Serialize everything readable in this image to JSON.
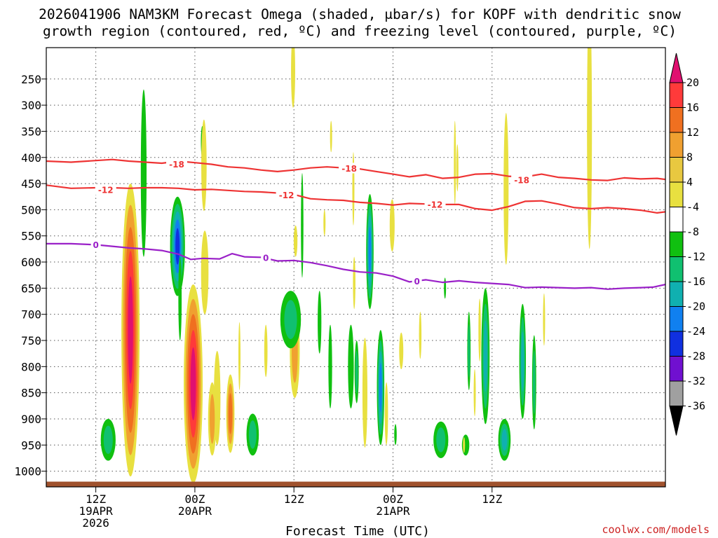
{
  "chart_data": {
    "type": "heatmap",
    "title_lines": [
      "2026041906 NAM3KM Forecast Omega (shaded, μbar/s) for KOPF with dendritic snow",
      "growth region (contoured, red, ºC) and freezing level (contoured, purple, ºC)"
    ],
    "xlabel": "Forecast Time (UTC)",
    "ylabel": "",
    "credit": "coolwx.com/models",
    "x_axis": {
      "unit": "forecast hour",
      "range": [
        -6,
        69
      ],
      "ticks": [
        {
          "hour": 0,
          "lines": [
            "12Z",
            "19APR",
            "2026"
          ]
        },
        {
          "hour": 12,
          "lines": [
            "00Z",
            "20APR"
          ]
        },
        {
          "hour": 24,
          "lines": [
            "12Z"
          ]
        },
        {
          "hour": 36,
          "lines": [
            "00Z",
            "21APR"
          ]
        },
        {
          "hour": 48,
          "lines": [
            "12Z"
          ]
        }
      ]
    },
    "y_axis": {
      "unit": "hPa",
      "range": [
        1030,
        190
      ],
      "ticks": [
        250,
        300,
        350,
        400,
        450,
        500,
        550,
        600,
        650,
        700,
        750,
        800,
        850,
        900,
        950,
        1000
      ]
    },
    "colorbar": {
      "labels": [
        20,
        16,
        12,
        8,
        4,
        -4,
        -8,
        -12,
        -16,
        -20,
        -24,
        -28,
        -32,
        -36
      ],
      "colors": [
        "#e01070",
        "#ff3a3a",
        "#f07020",
        "#f0a030",
        "#e8c840",
        "#e8e040",
        "#ffffff",
        "#10c010",
        "#10c070",
        "#10b0b0",
        "#1080f0",
        "#1030e0",
        "#7010d0",
        "#a010c0",
        "#a0a0a0",
        "#000000"
      ]
    },
    "ground": {
      "color": "#a0522d",
      "pressure": 1020
    },
    "contours": [
      {
        "name": "-18C isotherm",
        "color": "#ee3333",
        "label": "-18",
        "points": [
          [
            -6,
            407
          ],
          [
            -3,
            409
          ],
          [
            0,
            406
          ],
          [
            2,
            404
          ],
          [
            4,
            407
          ],
          [
            6,
            409
          ],
          [
            8,
            411
          ],
          [
            10,
            407
          ],
          [
            12,
            410
          ],
          [
            14,
            413
          ],
          [
            16,
            418
          ],
          [
            18,
            420
          ],
          [
            20,
            424
          ],
          [
            22,
            427
          ],
          [
            24,
            424
          ],
          [
            26,
            420
          ],
          [
            28,
            418
          ],
          [
            30,
            420
          ],
          [
            32,
            422
          ],
          [
            34,
            427
          ],
          [
            36,
            432
          ],
          [
            38,
            437
          ],
          [
            40,
            433
          ],
          [
            42,
            440
          ],
          [
            44,
            438
          ],
          [
            46,
            432
          ],
          [
            48,
            431
          ],
          [
            50,
            436
          ],
          [
            52,
            437
          ],
          [
            54,
            432
          ],
          [
            56,
            438
          ],
          [
            58,
            440
          ],
          [
            60,
            443
          ],
          [
            62,
            444
          ],
          [
            64,
            439
          ],
          [
            66,
            441
          ],
          [
            68,
            440
          ],
          [
            69,
            442
          ]
        ],
        "label_at": [
          [
            9.8,
            413
          ],
          [
            30.7,
            421
          ],
          [
            51.6,
            443
          ]
        ]
      },
      {
        "name": "-12C isotherm",
        "color": "#ee3333",
        "label": "-12",
        "points": [
          [
            -6,
            453
          ],
          [
            -3,
            459
          ],
          [
            0,
            458
          ],
          [
            2,
            458
          ],
          [
            4,
            459
          ],
          [
            6,
            458
          ],
          [
            8,
            458
          ],
          [
            10,
            459
          ],
          [
            12,
            462
          ],
          [
            14,
            461
          ],
          [
            16,
            463
          ],
          [
            18,
            465
          ],
          [
            20,
            466
          ],
          [
            22,
            468
          ],
          [
            24,
            471
          ],
          [
            26,
            479
          ],
          [
            28,
            481
          ],
          [
            30,
            482
          ],
          [
            32,
            486
          ],
          [
            34,
            488
          ],
          [
            36,
            491
          ],
          [
            38,
            488
          ],
          [
            40,
            489
          ],
          [
            42,
            490
          ],
          [
            44,
            490
          ],
          [
            46,
            498
          ],
          [
            48,
            501
          ],
          [
            50,
            494
          ],
          [
            52,
            484
          ],
          [
            54,
            483
          ],
          [
            56,
            489
          ],
          [
            58,
            496
          ],
          [
            60,
            498
          ],
          [
            62,
            496
          ],
          [
            64,
            498
          ],
          [
            66,
            501
          ],
          [
            68,
            506
          ],
          [
            69,
            504
          ]
        ],
        "label_at": [
          [
            1.2,
            462
          ],
          [
            23.1,
            472
          ],
          [
            41.1,
            490
          ]
        ]
      },
      {
        "name": "0C freezing level",
        "color": "#9a20c8",
        "label": "0",
        "points": [
          [
            -6,
            565
          ],
          [
            -3,
            565
          ],
          [
            0,
            567
          ],
          [
            2,
            570
          ],
          [
            4,
            573
          ],
          [
            6,
            575
          ],
          [
            8,
            578
          ],
          [
            10,
            585
          ],
          [
            11.5,
            595
          ],
          [
            13,
            593
          ],
          [
            15,
            594
          ],
          [
            16.5,
            584
          ],
          [
            18,
            590
          ],
          [
            20,
            591
          ],
          [
            22,
            598
          ],
          [
            24,
            597
          ],
          [
            26,
            601
          ],
          [
            28,
            607
          ],
          [
            30,
            614
          ],
          [
            32,
            619
          ],
          [
            34,
            621
          ],
          [
            36,
            627
          ],
          [
            38,
            638
          ],
          [
            40,
            634
          ],
          [
            42,
            639
          ],
          [
            44,
            636
          ],
          [
            46,
            639
          ],
          [
            48,
            641
          ],
          [
            50,
            643
          ],
          [
            52,
            649
          ],
          [
            54,
            648
          ],
          [
            56,
            649
          ],
          [
            58,
            650
          ],
          [
            60,
            649
          ],
          [
            62,
            652
          ],
          [
            64,
            650
          ],
          [
            66,
            649
          ],
          [
            67.5,
            648
          ],
          [
            69,
            643
          ]
        ],
        "label_at": [
          [
            0,
            567
          ],
          [
            20.6,
            592
          ],
          [
            38.9,
            637
          ]
        ]
      }
    ],
    "shaded_cells": [
      {
        "center": [
          5.8,
          430
        ],
        "size": [
          0.7,
          320
        ],
        "omega": -6
      },
      {
        "center": [
          12.9,
          370
        ],
        "size": [
          0.35,
          60
        ],
        "omega": -6
      },
      {
        "center": [
          23.9,
          235
        ],
        "size": [
          0.5,
          140
        ],
        "omega": 5
      },
      {
        "center": [
          13.1,
          415
        ],
        "size": [
          0.65,
          175
        ],
        "omega": 6
      },
      {
        "center": [
          28.5,
          360
        ],
        "size": [
          0.25,
          60
        ],
        "omega": 5
      },
      {
        "center": [
          31.2,
          460
        ],
        "size": [
          0.25,
          140
        ],
        "omega": 5
      },
      {
        "center": [
          43.5,
          410
        ],
        "size": [
          0.25,
          160
        ],
        "omega": 5
      },
      {
        "center": [
          49.7,
          460
        ],
        "size": [
          0.6,
          290
        ],
        "omega": 6
      },
      {
        "center": [
          59.8,
          340
        ],
        "size": [
          0.6,
          470
        ],
        "omega": 6
      },
      {
        "center": [
          43.8,
          420
        ],
        "size": [
          0.2,
          90
        ],
        "omega": 5
      },
      {
        "center": [
          4.2,
          730
        ],
        "size": [
          2.2,
          560
        ],
        "omega": 21
      },
      {
        "center": [
          11.8,
          833
        ],
        "size": [
          2.3,
          380
        ],
        "omega": 21
      },
      {
        "center": [
          9.9,
          570
        ],
        "size": [
          1.8,
          190
        ],
        "omega": -21
      },
      {
        "center": [
          13.2,
          620
        ],
        "size": [
          0.9,
          160
        ],
        "omega": 6
      },
      {
        "center": [
          14.7,
          860
        ],
        "size": [
          0.8,
          180
        ],
        "omega": 5
      },
      {
        "center": [
          14.1,
          900
        ],
        "size": [
          1.0,
          140
        ],
        "omega": 9
      },
      {
        "center": [
          16.3,
          890
        ],
        "size": [
          1.0,
          150
        ],
        "omega": 13
      },
      {
        "center": [
          17.4,
          780
        ],
        "size": [
          0.25,
          130
        ],
        "omega": 5
      },
      {
        "center": [
          24.1,
          770
        ],
        "size": [
          1.2,
          180
        ],
        "omega": 10
      },
      {
        "center": [
          25.0,
          530
        ],
        "size": [
          0.3,
          200
        ],
        "omega": -6
      },
      {
        "center": [
          24.2,
          560
        ],
        "size": [
          0.45,
          60
        ],
        "omega": 5
      },
      {
        "center": [
          27.7,
          525
        ],
        "size": [
          0.25,
          50
        ],
        "omega": 5
      },
      {
        "center": [
          33.2,
          580
        ],
        "size": [
          0.9,
          220
        ],
        "omega": -17
      },
      {
        "center": [
          35.9,
          530
        ],
        "size": [
          0.6,
          100
        ],
        "omega": 5
      },
      {
        "center": [
          31.3,
          640
        ],
        "size": [
          0.3,
          100
        ],
        "omega": 5
      },
      {
        "center": [
          30.9,
          800
        ],
        "size": [
          0.7,
          160
        ],
        "omega": -6
      },
      {
        "center": [
          31.6,
          810
        ],
        "size": [
          0.5,
          120
        ],
        "omega": -10
      },
      {
        "center": [
          32.6,
          850
        ],
        "size": [
          0.6,
          210
        ],
        "omega": 7
      },
      {
        "center": [
          34.5,
          840
        ],
        "size": [
          0.9,
          220
        ],
        "omega": -17
      },
      {
        "center": [
          37.0,
          770
        ],
        "size": [
          0.5,
          70
        ],
        "omega": 5
      },
      {
        "center": [
          36.3,
          930
        ],
        "size": [
          0.3,
          40
        ],
        "omega": -6
      },
      {
        "center": [
          39.3,
          740
        ],
        "size": [
          0.3,
          90
        ],
        "omega": 5
      },
      {
        "center": [
          1.5,
          940
        ],
        "size": [
          1.8,
          80
        ],
        "omega": -10
      },
      {
        "center": [
          19.0,
          930
        ],
        "size": [
          1.5,
          80
        ],
        "omega": -9
      },
      {
        "center": [
          23.6,
          710
        ],
        "size": [
          2.5,
          110
        ],
        "omega": -8
      },
      {
        "center": [
          27.1,
          715
        ],
        "size": [
          0.45,
          120
        ],
        "omega": -6
      },
      {
        "center": [
          28.4,
          800
        ],
        "size": [
          0.45,
          160
        ],
        "omega": -6
      },
      {
        "center": [
          35.2,
          890
        ],
        "size": [
          0.4,
          120
        ],
        "omega": 7
      },
      {
        "center": [
          41.8,
          940
        ],
        "size": [
          1.8,
          70
        ],
        "omega": -9
      },
      {
        "center": [
          44.8,
          950
        ],
        "size": [
          0.9,
          40
        ],
        "omega": -6
      },
      {
        "center": [
          46.5,
          730
        ],
        "size": [
          0.3,
          120
        ],
        "omega": 4
      },
      {
        "center": [
          47.2,
          780
        ],
        "size": [
          1.0,
          260
        ],
        "omega": -12
      },
      {
        "center": [
          45.2,
          770
        ],
        "size": [
          0.4,
          150
        ],
        "omega": -8
      },
      {
        "center": [
          45.9,
          850
        ],
        "size": [
          0.2,
          90
        ],
        "omega": 4
      },
      {
        "center": [
          49.5,
          940
        ],
        "size": [
          1.5,
          80
        ],
        "omega": -12
      },
      {
        "center": [
          51.7,
          790
        ],
        "size": [
          0.8,
          220
        ],
        "omega": -14
      },
      {
        "center": [
          53.1,
          830
        ],
        "size": [
          0.5,
          180
        ],
        "omega": -10
      },
      {
        "center": [
          54.3,
          710
        ],
        "size": [
          0.25,
          100
        ],
        "omega": 5
      },
      {
        "center": [
          20.6,
          770
        ],
        "size": [
          0.4,
          100
        ],
        "omega": 6
      },
      {
        "center": [
          10.2,
          670
        ],
        "size": [
          0.4,
          160
        ],
        "omega": -6
      },
      {
        "center": [
          42.3,
          650
        ],
        "size": [
          0.25,
          40
        ],
        "omega": -6
      },
      {
        "center": [
          44.6,
          950
        ],
        "size": [
          0.2,
          30
        ],
        "omega": 4
      }
    ]
  }
}
